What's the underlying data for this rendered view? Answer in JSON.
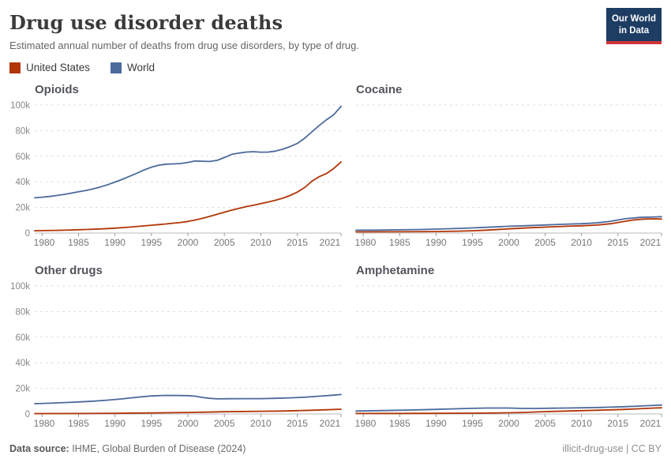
{
  "header": {
    "title": "Drug use disorder deaths",
    "subtitle": "Estimated annual number of deaths from drug use disorders, by type of drug.",
    "logo": {
      "line1": "Our World",
      "line2": "in Data",
      "bg_color": "#1d3d63",
      "bar_color": "#d13438"
    }
  },
  "legend": {
    "items": [
      {
        "label": "United States",
        "color": "#b13507"
      },
      {
        "label": "World",
        "color": "#4c6a9c"
      }
    ]
  },
  "footer": {
    "source_label": "Data source:",
    "source_text": " IHME, Global Burden of Disease (2024)",
    "right_text": "illicit-drug-use | CC BY"
  },
  "style": {
    "gridline_color": "#dedede",
    "axis_color": "#c8c8c8",
    "tick_color": "#9a9a9a",
    "ytick_label_color": "#888888",
    "xtick_label_color": "#777777"
  },
  "chart_data": [
    {
      "type": "line",
      "title": "Opioids",
      "y_labels": true,
      "xlim": [
        1979,
        2021
      ],
      "ylim": [
        0,
        100000
      ],
      "xticks": [
        1980,
        1985,
        1990,
        1995,
        2000,
        2005,
        2010,
        2015,
        2021
      ],
      "ytick_values": [
        0,
        20000,
        40000,
        60000,
        80000,
        100000
      ],
      "ytick_labels": [
        "0",
        "20k",
        "40k",
        "60k",
        "80k",
        "100k"
      ],
      "series": [
        {
          "name": "World",
          "points": [
            [
              1979,
              27500
            ],
            [
              1980,
              28000
            ],
            [
              1981,
              28600
            ],
            [
              1982,
              29300
            ],
            [
              1983,
              30200
            ],
            [
              1984,
              31200
            ],
            [
              1985,
              32200
            ],
            [
              1986,
              33300
            ],
            [
              1987,
              34500
            ],
            [
              1988,
              36000
            ],
            [
              1989,
              37800
            ],
            [
              1990,
              39800
            ],
            [
              1991,
              42000
            ],
            [
              1992,
              44300
            ],
            [
              1993,
              46700
            ],
            [
              1994,
              49300
            ],
            [
              1995,
              51500
            ],
            [
              1996,
              53000
            ],
            [
              1997,
              53800
            ],
            [
              1998,
              54000
            ],
            [
              1999,
              54300
            ],
            [
              2000,
              55200
            ],
            [
              2001,
              56300
            ],
            [
              2002,
              56100
            ],
            [
              2003,
              55900
            ],
            [
              2004,
              56800
            ],
            [
              2005,
              59000
            ],
            [
              2006,
              61500
            ],
            [
              2007,
              62500
            ],
            [
              2008,
              63300
            ],
            [
              2009,
              63600
            ],
            [
              2010,
              63200
            ],
            [
              2011,
              63300
            ],
            [
              2012,
              64000
            ],
            [
              2013,
              65500
            ],
            [
              2014,
              67500
            ],
            [
              2015,
              70000
            ],
            [
              2016,
              74000
            ],
            [
              2017,
              79000
            ],
            [
              2018,
              84000
            ],
            [
              2019,
              88500
            ],
            [
              2020,
              92500
            ],
            [
              2021,
              99000
            ]
          ]
        },
        {
          "name": "United States",
          "points": [
            [
              1979,
              1800
            ],
            [
              1980,
              1900
            ],
            [
              1982,
              2100
            ],
            [
              1984,
              2400
            ],
            [
              1985,
              2600
            ],
            [
              1986,
              2800
            ],
            [
              1988,
              3200
            ],
            [
              1990,
              3800
            ],
            [
              1992,
              4600
            ],
            [
              1994,
              5600
            ],
            [
              1995,
              6100
            ],
            [
              1996,
              6600
            ],
            [
              1997,
              7100
            ],
            [
              1998,
              7700
            ],
            [
              1999,
              8300
            ],
            [
              2000,
              9100
            ],
            [
              2001,
              10200
            ],
            [
              2002,
              11500
            ],
            [
              2003,
              13000
            ],
            [
              2004,
              14700
            ],
            [
              2005,
              16300
            ],
            [
              2006,
              17900
            ],
            [
              2007,
              19300
            ],
            [
              2008,
              20700
            ],
            [
              2009,
              21800
            ],
            [
              2010,
              23000
            ],
            [
              2011,
              24200
            ],
            [
              2012,
              25600
            ],
            [
              2013,
              27200
            ],
            [
              2014,
              29300
            ],
            [
              2015,
              32000
            ],
            [
              2016,
              35500
            ],
            [
              2017,
              40500
            ],
            [
              2018,
              44000
            ],
            [
              2019,
              46500
            ],
            [
              2020,
              50500
            ],
            [
              2021,
              55500
            ]
          ]
        }
      ]
    },
    {
      "type": "line",
      "title": "Cocaine",
      "y_labels": false,
      "xlim": [
        1979,
        2021
      ],
      "ylim": [
        0,
        100000
      ],
      "xticks": [
        1980,
        1985,
        1990,
        1995,
        2000,
        2005,
        2010,
        2015,
        2021
      ],
      "ytick_values": [
        0,
        20000,
        40000,
        60000,
        80000,
        100000
      ],
      "ytick_labels": [
        "0",
        "20k",
        "40k",
        "60k",
        "80k",
        "100k"
      ],
      "series": [
        {
          "name": "World",
          "points": [
            [
              1979,
              2200
            ],
            [
              1982,
              2300
            ],
            [
              1985,
              2500
            ],
            [
              1988,
              2800
            ],
            [
              1990,
              3100
            ],
            [
              1992,
              3400
            ],
            [
              1995,
              4000
            ],
            [
              1997,
              4500
            ],
            [
              2000,
              5300
            ],
            [
              2002,
              5700
            ],
            [
              2005,
              6300
            ],
            [
              2007,
              6800
            ],
            [
              2010,
              7300
            ],
            [
              2012,
              7900
            ],
            [
              2014,
              9200
            ],
            [
              2016,
              11200
            ],
            [
              2018,
              12200
            ],
            [
              2020,
              12600
            ],
            [
              2021,
              12800
            ]
          ]
        },
        {
          "name": "United States",
          "points": [
            [
              1979,
              900
            ],
            [
              1985,
              1000
            ],
            [
              1990,
              1200
            ],
            [
              1993,
              1500
            ],
            [
              1995,
              1800
            ],
            [
              1997,
              2300
            ],
            [
              2000,
              3300
            ],
            [
              2002,
              3900
            ],
            [
              2005,
              4600
            ],
            [
              2008,
              5300
            ],
            [
              2010,
              5700
            ],
            [
              2012,
              6200
            ],
            [
              2014,
              7300
            ],
            [
              2016,
              9200
            ],
            [
              2017,
              10100
            ],
            [
              2018,
              10700
            ],
            [
              2019,
              11000
            ],
            [
              2020,
              11100
            ],
            [
              2021,
              10900
            ]
          ]
        }
      ]
    },
    {
      "type": "line",
      "title": "Other drugs",
      "y_labels": true,
      "xlim": [
        1979,
        2021
      ],
      "ylim": [
        0,
        100000
      ],
      "xticks": [
        1980,
        1985,
        1990,
        1995,
        2000,
        2005,
        2010,
        2015,
        2021
      ],
      "ytick_values": [
        0,
        20000,
        40000,
        60000,
        80000,
        100000
      ],
      "ytick_labels": [
        "0",
        "20k",
        "40k",
        "60k",
        "80k",
        "100k"
      ],
      "series": [
        {
          "name": "World",
          "points": [
            [
              1979,
              8000
            ],
            [
              1981,
              8400
            ],
            [
              1983,
              8900
            ],
            [
              1985,
              9400
            ],
            [
              1987,
              10000
            ],
            [
              1989,
              10800
            ],
            [
              1991,
              11800
            ],
            [
              1993,
              13000
            ],
            [
              1995,
              14100
            ],
            [
              1997,
              14500
            ],
            [
              1999,
              14400
            ],
            [
              2000,
              14300
            ],
            [
              2001,
              13900
            ],
            [
              2002,
              12900
            ],
            [
              2003,
              12200
            ],
            [
              2004,
              11800
            ],
            [
              2006,
              11900
            ],
            [
              2008,
              12000
            ],
            [
              2010,
              12000
            ],
            [
              2012,
              12200
            ],
            [
              2014,
              12600
            ],
            [
              2016,
              13100
            ],
            [
              2018,
              13900
            ],
            [
              2020,
              14700
            ],
            [
              2021,
              15200
            ]
          ]
        },
        {
          "name": "United States",
          "points": [
            [
              1979,
              300
            ],
            [
              1985,
              400
            ],
            [
              1990,
              500
            ],
            [
              1995,
              800
            ],
            [
              2000,
              1200
            ],
            [
              2005,
              1700
            ],
            [
              2010,
              2100
            ],
            [
              2013,
              2300
            ],
            [
              2015,
              2600
            ],
            [
              2017,
              2900
            ],
            [
              2019,
              3300
            ],
            [
              2021,
              3700
            ]
          ]
        }
      ]
    },
    {
      "type": "line",
      "title": "Amphetamine",
      "y_labels": false,
      "xlim": [
        1979,
        2021
      ],
      "ylim": [
        0,
        100000
      ],
      "xticks": [
        1980,
        1985,
        1990,
        1995,
        2000,
        2005,
        2010,
        2015,
        2021
      ],
      "ytick_values": [
        0,
        20000,
        40000,
        60000,
        80000,
        100000
      ],
      "ytick_labels": [
        "0",
        "20k",
        "40k",
        "60k",
        "80k",
        "100k"
      ],
      "series": [
        {
          "name": "World",
          "points": [
            [
              1979,
              2300
            ],
            [
              1982,
              2600
            ],
            [
              1985,
              2900
            ],
            [
              1988,
              3300
            ],
            [
              1990,
              3600
            ],
            [
              1993,
              4100
            ],
            [
              1995,
              4400
            ],
            [
              1997,
              4600
            ],
            [
              2000,
              4600
            ],
            [
              2002,
              4300
            ],
            [
              2004,
              4300
            ],
            [
              2006,
              4500
            ],
            [
              2008,
              4600
            ],
            [
              2010,
              4800
            ],
            [
              2012,
              5000
            ],
            [
              2014,
              5300
            ],
            [
              2016,
              5700
            ],
            [
              2018,
              6200
            ],
            [
              2020,
              6700
            ],
            [
              2021,
              7000
            ]
          ]
        },
        {
          "name": "United States",
          "points": [
            [
              1979,
              400
            ],
            [
              1985,
              450
            ],
            [
              1990,
              500
            ],
            [
              1995,
              600
            ],
            [
              1998,
              750
            ],
            [
              2000,
              900
            ],
            [
              2002,
              1200
            ],
            [
              2004,
              1600
            ],
            [
              2006,
              2000
            ],
            [
              2008,
              2300
            ],
            [
              2010,
              2600
            ],
            [
              2012,
              2900
            ],
            [
              2014,
              3200
            ],
            [
              2016,
              3600
            ],
            [
              2018,
              4100
            ],
            [
              2020,
              4600
            ],
            [
              2021,
              4800
            ]
          ]
        }
      ]
    }
  ]
}
